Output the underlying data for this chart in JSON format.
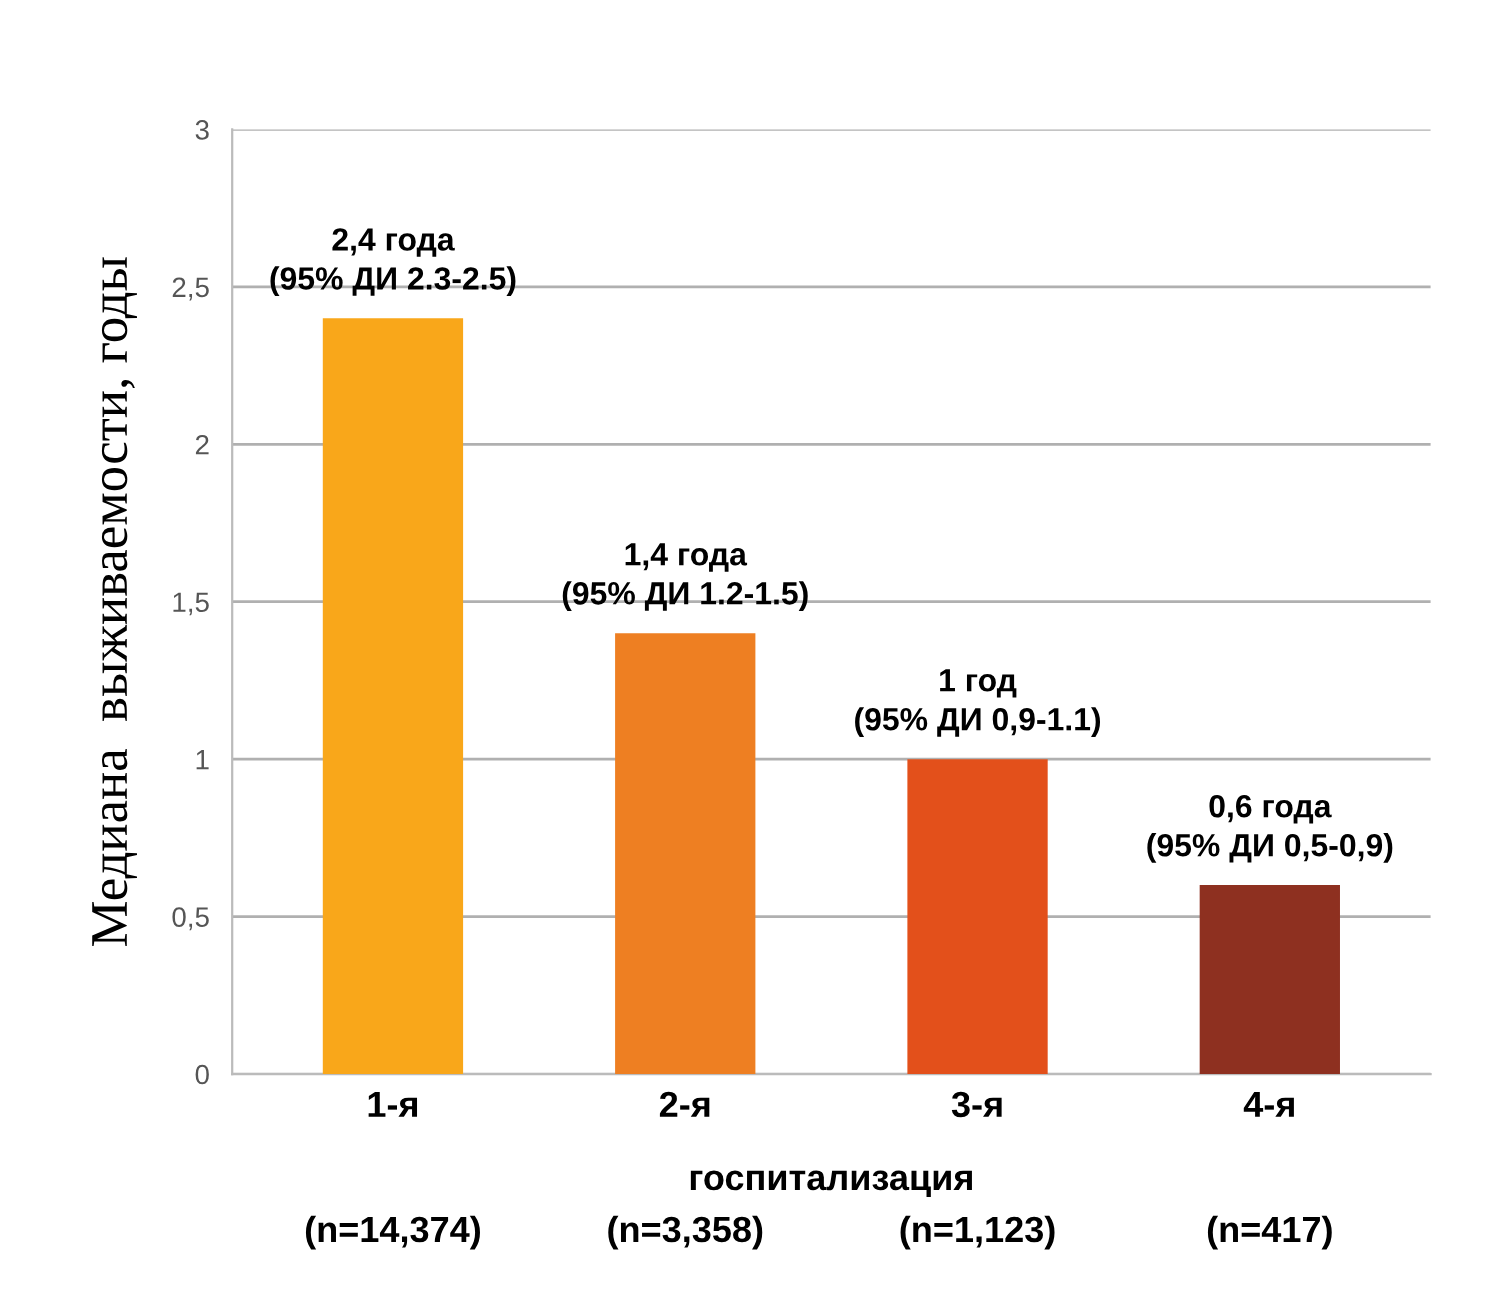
{
  "chart_data": {
    "type": "bar",
    "ylabel": "Медиана  выживаемости, годы",
    "xlabel": "госпитализация",
    "categories": [
      "1-я",
      "2-я",
      "3-я",
      "4-я"
    ],
    "values": [
      2.4,
      1.4,
      1.0,
      0.6
    ],
    "colors": [
      "#f9a71a",
      "#ee7f22",
      "#e3501b",
      "#8e3020"
    ],
    "value_labels": [
      "2,4 года\n(95% ДИ 2.3-2.5)",
      "1,4 года\n(95% ДИ 1.2-1.5)",
      "1 год\n(95% ДИ 0,9-1.1)",
      "0,6 года\n(95% ДИ 0,5-0,9)"
    ],
    "annotations": [
      "(n=14,374)",
      "(n=3,358)",
      "(n=1,123)",
      "(n=417)"
    ],
    "ylim": [
      0,
      3
    ],
    "yticks": [
      0,
      {
        "value": 0.5,
        "label": "0,5"
      },
      1,
      {
        "value": 1.5,
        "label": "1,5"
      },
      2,
      {
        "value": 2.5,
        "label": "2,5"
      },
      3
    ],
    "grid": "y"
  }
}
